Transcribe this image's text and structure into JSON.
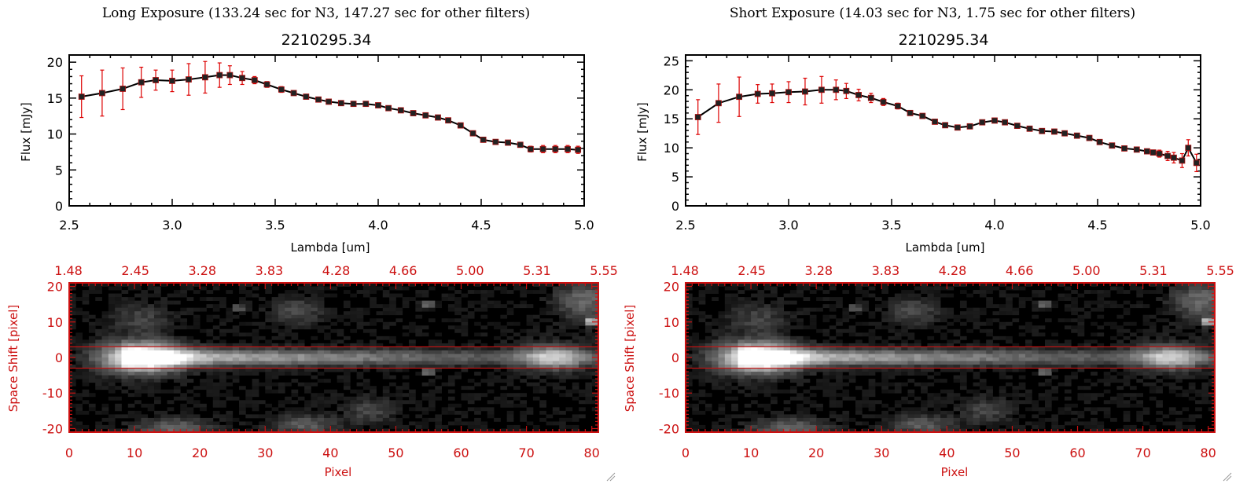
{
  "panels": [
    {
      "heading": "Long Exposure (133.24 sec for N3, 147.27 sec for other filters)",
      "chart_data": {
        "type": "line",
        "title": "2210295.34",
        "xlabel": "Lambda [um]",
        "ylabel": "Flux [mJy]",
        "xlim": [
          2.5,
          5.0
        ],
        "ylim": [
          0,
          21
        ],
        "xticks": [
          "2.5",
          "3.0",
          "3.5",
          "4.0",
          "4.5",
          "5.0"
        ],
        "yticks": [
          "0",
          "5",
          "10",
          "15",
          "20"
        ],
        "series": [
          {
            "x": [
              2.56,
              2.66,
              2.76,
              2.85,
              2.92,
              3.0,
              3.08,
              3.16,
              3.23,
              3.28,
              3.34,
              3.4,
              3.46,
              3.53,
              3.59,
              3.65,
              3.71,
              3.76,
              3.82,
              3.88,
              3.94,
              4.0,
              4.05,
              4.11,
              4.17,
              4.23,
              4.29,
              4.34,
              4.4,
              4.46,
              4.51,
              4.57,
              4.63,
              4.69,
              4.74,
              4.8,
              4.86,
              4.92,
              4.97
            ],
            "y": [
              15.2,
              15.7,
              16.3,
              17.2,
              17.5,
              17.4,
              17.6,
              17.9,
              18.2,
              18.2,
              17.8,
              17.5,
              16.9,
              16.2,
              15.7,
              15.2,
              14.8,
              14.5,
              14.3,
              14.2,
              14.2,
              14.0,
              13.6,
              13.3,
              12.9,
              12.6,
              12.3,
              11.9,
              11.2,
              10.1,
              9.2,
              8.9,
              8.8,
              8.5,
              7.9,
              7.9,
              7.9,
              7.9,
              7.8
            ],
            "err": [
              2.9,
              3.2,
              2.9,
              2.1,
              1.4,
              1.5,
              2.2,
              2.2,
              1.7,
              1.3,
              0.9,
              0.5,
              0.4,
              0.4,
              0.3,
              0.3,
              0.3,
              0.3,
              0.3,
              0.3,
              0.3,
              0.3,
              0.3,
              0.3,
              0.3,
              0.3,
              0.3,
              0.3,
              0.3,
              0.3,
              0.3,
              0.3,
              0.3,
              0.3,
              0.4,
              0.5,
              0.5,
              0.5,
              0.5
            ]
          }
        ]
      },
      "image_panel": {
        "top_ticks": [
          "1.48",
          "2.45",
          "3.28",
          "3.83",
          "4.28",
          "4.66",
          "5.00",
          "5.31",
          "5.55"
        ],
        "bottom_ticks": [
          "0",
          "10",
          "20",
          "30",
          "40",
          "50",
          "60",
          "70",
          "80"
        ],
        "left_ticks": [
          "20",
          "10",
          "0",
          "-10",
          "-20"
        ],
        "xlabel": "Pixel",
        "ylabel": "Space Shift [pixel]",
        "xlim": [
          0,
          81
        ],
        "ylim": [
          -21,
          21
        ],
        "aperture": [
          -3,
          3
        ]
      }
    },
    {
      "heading": "Short Exposure (14.03 sec for N3, 1.75 sec for other filters)",
      "chart_data": {
        "type": "line",
        "title": "2210295.34",
        "xlabel": "Lambda [um]",
        "ylabel": "Flux [mJy]",
        "xlim": [
          2.5,
          5.0
        ],
        "ylim": [
          0,
          26
        ],
        "xticks": [
          "2.5",
          "3.0",
          "3.5",
          "4.0",
          "4.5",
          "5.0"
        ],
        "yticks": [
          "0",
          "5",
          "10",
          "15",
          "20",
          "25"
        ],
        "series": [
          {
            "x": [
              2.56,
              2.66,
              2.76,
              2.85,
              2.92,
              3.0,
              3.08,
              3.16,
              3.23,
              3.28,
              3.34,
              3.4,
              3.46,
              3.53,
              3.59,
              3.65,
              3.71,
              3.76,
              3.82,
              3.88,
              3.94,
              4.0,
              4.05,
              4.11,
              4.17,
              4.23,
              4.29,
              4.34,
              4.4,
              4.46,
              4.51,
              4.57,
              4.63,
              4.69,
              4.74,
              4.77,
              4.8,
              4.84,
              4.87,
              4.91,
              4.94,
              4.98
            ],
            "y": [
              15.3,
              17.7,
              18.8,
              19.3,
              19.4,
              19.6,
              19.7,
              20.0,
              20.0,
              19.8,
              19.1,
              18.6,
              17.9,
              17.2,
              16.0,
              15.5,
              14.5,
              13.9,
              13.5,
              13.7,
              14.4,
              14.7,
              14.4,
              13.8,
              13.3,
              12.9,
              12.8,
              12.5,
              12.1,
              11.7,
              11.0,
              10.4,
              9.9,
              9.7,
              9.4,
              9.2,
              9.0,
              8.6,
              8.3,
              7.8,
              10.0,
              7.4
            ],
            "err": [
              3.0,
              3.3,
              3.4,
              1.6,
              1.6,
              1.8,
              2.3,
              2.3,
              1.7,
              1.3,
              1.0,
              0.8,
              0.6,
              0.5,
              0.4,
              0.4,
              0.4,
              0.4,
              0.4,
              0.4,
              0.4,
              0.4,
              0.4,
              0.4,
              0.4,
              0.4,
              0.4,
              0.4,
              0.4,
              0.4,
              0.4,
              0.4,
              0.4,
              0.4,
              0.4,
              0.4,
              0.6,
              0.8,
              0.9,
              1.2,
              1.4,
              1.5
            ]
          }
        ]
      },
      "image_panel": {
        "top_ticks": [
          "1.48",
          "2.45",
          "3.28",
          "3.83",
          "4.28",
          "4.66",
          "5.00",
          "5.31",
          "5.55"
        ],
        "bottom_ticks": [
          "0",
          "10",
          "20",
          "30",
          "40",
          "50",
          "60",
          "70",
          "80"
        ],
        "left_ticks": [
          "20",
          "10",
          "0",
          "-10",
          "-20"
        ],
        "xlabel": "Pixel",
        "ylabel": "Space Shift [pixel]",
        "xlim": [
          0,
          81
        ],
        "ylim": [
          -21,
          21
        ],
        "aperture": [
          -3,
          3
        ]
      }
    }
  ],
  "colors": {
    "axes": "#000000",
    "errorbar": "#dd0000",
    "marker": "#222222",
    "image_frame": "#cc1111"
  },
  "icons": {
    "resize_grip": "resize-grip-icon"
  }
}
